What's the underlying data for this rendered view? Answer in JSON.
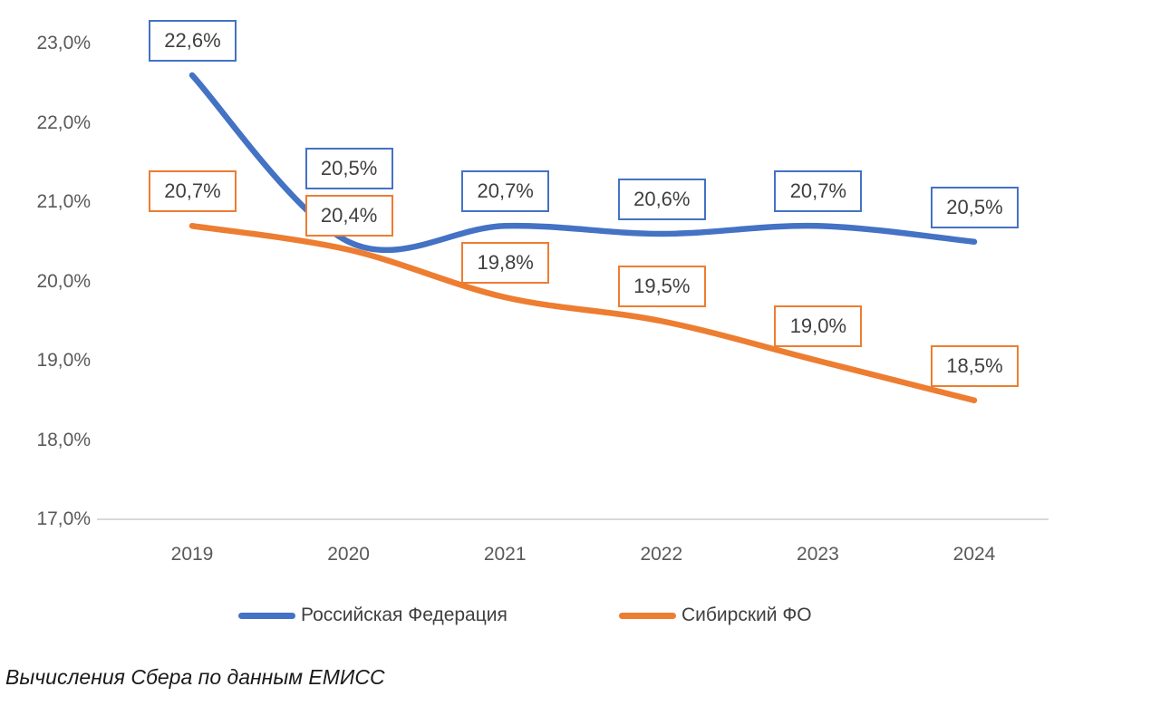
{
  "chart_data": {
    "type": "line",
    "title": "",
    "x_categories": [
      "2019",
      "2020",
      "2021",
      "2022",
      "2023",
      "2024"
    ],
    "series": [
      {
        "name": "Российская Федерация",
        "color": "#4472C4",
        "values": [
          22.6,
          20.5,
          20.7,
          20.6,
          20.7,
          20.5
        ],
        "point_labels": [
          "22,6%",
          "20,5%",
          "20,7%",
          "20,6%",
          "20,7%",
          "20,5%"
        ]
      },
      {
        "name": "Сибирский ФО",
        "color": "#ED7D31",
        "values": [
          20.7,
          20.4,
          19.8,
          19.5,
          19.0,
          18.5
        ],
        "point_labels": [
          "20,7%",
          "20,4%",
          "19,8%",
          "19,5%",
          "19,0%",
          "18,5%"
        ]
      }
    ],
    "y_axis": {
      "min": 17,
      "max": 23,
      "step": 1,
      "tick_labels": [
        "17,0%",
        "18,0%",
        "19,0%",
        "20,0%",
        "21,0%",
        "22,0%",
        "23,0%"
      ]
    },
    "grid": false,
    "smooth_lines": true,
    "legend_position": "bottom",
    "axis_line_color": "#d9d9d9",
    "label_box_dy": [
      [
        -61,
        -104,
        -61,
        -61,
        -61,
        -61
      ],
      [
        -61,
        -61,
        -61,
        -61,
        -61,
        -61
      ]
    ],
    "caption": "Вычисления Сбера по данным ЕМИСС"
  },
  "colors": {
    "axis_text": "#595959",
    "data_label_text": "#3f3f3f",
    "legend_text": "#404040",
    "caption_text": "#1a1a1a"
  }
}
